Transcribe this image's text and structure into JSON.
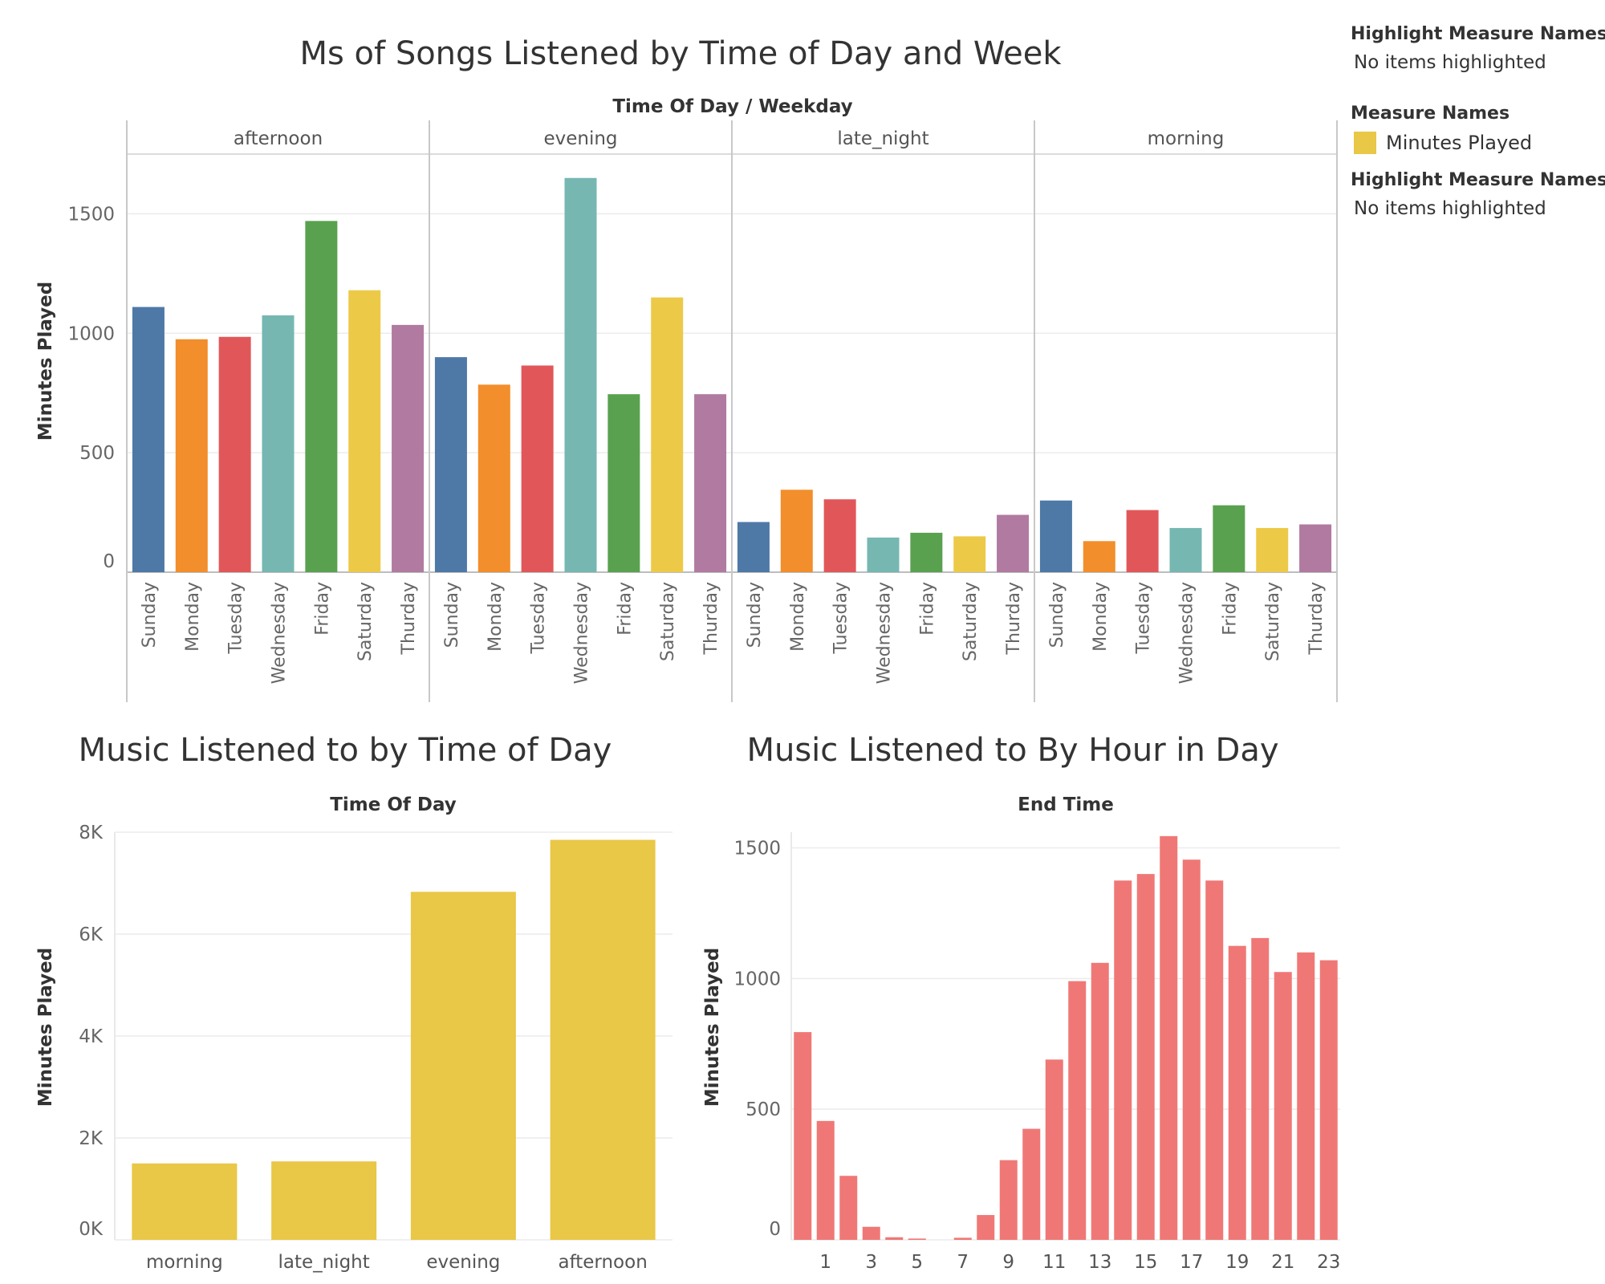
{
  "legend": {
    "highlight_top_title": "Highlight Measure Names",
    "highlight_top_text": "No items highlighted",
    "measure_names_title": "Measure Names",
    "measure_item_label": "Minutes Played",
    "measure_item_color": "#e9c747",
    "highlight_bottom_title": "Highlight Measure Names",
    "highlight_bottom_text": "No items highlighted"
  },
  "colors": {
    "Sunday": "#4e79a7",
    "Monday": "#f28e2b",
    "Tuesday": "#e15759",
    "Wednesday": "#76b7b2",
    "Friday": "#59a14f",
    "Saturday": "#edc948",
    "Thurday": "#b07aa1",
    "time_of_day_bar": "#e9c747",
    "hour_bar": "#ef7876"
  },
  "chart_data": [
    {
      "type": "bar",
      "title": "Ms of Songs Listened by Time of Day and Week",
      "header": "Time Of Day  /  Weekday",
      "ylabel": "Minutes Played",
      "ylim": [
        0,
        1750
      ],
      "yticks": [
        0,
        500,
        1000,
        1500
      ],
      "panels": [
        "afternoon",
        "evening",
        "late_night",
        "morning"
      ],
      "categories": [
        "Sunday",
        "Monday",
        "Tuesday",
        "Wednesday",
        "Friday",
        "Saturday",
        "Thurday"
      ],
      "values": {
        "afternoon": [
          1110,
          975,
          985,
          1075,
          1470,
          1180,
          1035
        ],
        "evening": [
          900,
          785,
          865,
          1650,
          745,
          1150,
          745
        ],
        "late_night": [
          210,
          345,
          305,
          145,
          165,
          150,
          240
        ],
        "morning": [
          300,
          130,
          260,
          185,
          280,
          185,
          200
        ]
      }
    },
    {
      "type": "bar",
      "title": "Music Listened to by Time of Day",
      "header": "Time Of Day",
      "ylabel": "Minutes Played",
      "ylim": [
        0,
        8000
      ],
      "yticks": [
        0,
        2000,
        4000,
        6000,
        8000
      ],
      "yticklabels": [
        "0K",
        "2K",
        "4K",
        "6K",
        "8K"
      ],
      "categories": [
        "morning",
        "late_night",
        "evening",
        "afternoon"
      ],
      "values": [
        1500,
        1540,
        6830,
        7850
      ]
    },
    {
      "type": "bar",
      "title": "Music Listened to By Hour in Day",
      "header": "End Time",
      "ylabel": "Minutes Played",
      "ylim": [
        0,
        1560
      ],
      "yticks": [
        0,
        500,
        1000,
        1500
      ],
      "x": [
        0,
        1,
        2,
        3,
        4,
        5,
        6,
        7,
        8,
        9,
        10,
        11,
        12,
        13,
        14,
        15,
        16,
        17,
        18,
        19,
        20,
        21,
        22,
        23
      ],
      "xticklabels": [
        "1",
        "3",
        "5",
        "7",
        "9",
        "11",
        "13",
        "15",
        "17",
        "19",
        "21",
        "23"
      ],
      "values": [
        795,
        455,
        245,
        50,
        10,
        5,
        0,
        8,
        95,
        305,
        425,
        690,
        990,
        1060,
        1375,
        1400,
        1545,
        1455,
        1375,
        1125,
        1155,
        1025,
        1100,
        1070
      ]
    }
  ]
}
